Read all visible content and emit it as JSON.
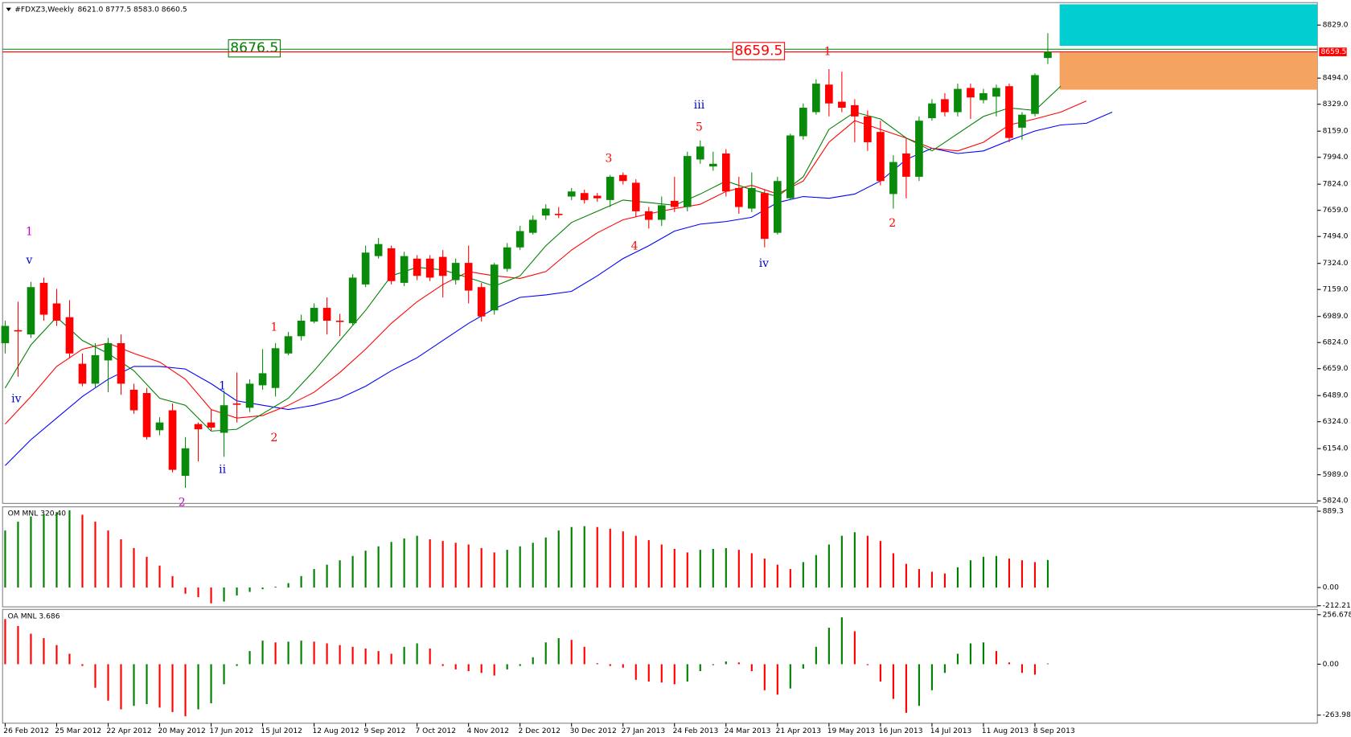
{
  "chart_data": [
    {
      "type": "candlestick",
      "title": "#FDXZ3,Weekly",
      "title_ohlc": "8621.0 8777.5 8583.0 8660.5",
      "categories": [
        "26 Feb 2012",
        null,
        null,
        null,
        "25 Mar 2012",
        null,
        null,
        null,
        "22 Apr 2012",
        null,
        null,
        null,
        "20 May 2012",
        null,
        null,
        null,
        "17 Jun 2012",
        null,
        null,
        null,
        "15 Jul 2012",
        null,
        null,
        null,
        "12 Aug 2012",
        null,
        null,
        null,
        "9 Sep 2012",
        null,
        null,
        null,
        "7 Oct 2012",
        null,
        null,
        null,
        "4 Nov 2012",
        null,
        null,
        null,
        "2 Dec 2012",
        null,
        null,
        null,
        "30 Dec 2012",
        null,
        null,
        null,
        "27 Jan 2013",
        null,
        null,
        null,
        "24 Feb 2013",
        null,
        null,
        null,
        "24 Mar 2013",
        null,
        null,
        null,
        "21 Apr 2013",
        null,
        null,
        null,
        "19 May 2013",
        null,
        null,
        null,
        "16 Jun 2013",
        null,
        null,
        null,
        "14 Jul 2013",
        null,
        null,
        null,
        "11 Aug 2013",
        null,
        null,
        null,
        "8 Sep 2013",
        null
      ],
      "open": [
        6820,
        6902,
        6875,
        7201,
        7071,
        6984,
        6690,
        6564,
        6711,
        6820,
        6526,
        6505,
        6270,
        6396,
        5982,
        6309,
        6319,
        6254,
        6439,
        6412,
        6554,
        6537,
        6755,
        6864,
        6956,
        7043,
        6962,
        6946,
        7191,
        7370,
        7419,
        7201,
        7354,
        7354,
        7365,
        7218,
        7327,
        7174,
        7027,
        7289,
        7425,
        7517,
        7626,
        7637,
        7746,
        7768,
        7751,
        7724,
        7882,
        7833,
        7653,
        7599,
        7719,
        7680,
        7980,
        7936,
        8018,
        7800,
        7670,
        7768,
        7517,
        7735,
        8127,
        8279,
        8453,
        8345,
        8323,
        8252,
        8154,
        7762,
        8018,
        7871,
        8241,
        8361,
        8279,
        8432,
        8355,
        8377,
        8443,
        8181,
        8268,
        8621
      ],
      "high": [
        6962,
        7082,
        7207,
        7234,
        7163,
        7092,
        6755,
        6820,
        6853,
        6875,
        6564,
        6537,
        6352,
        6439,
        6227,
        6319,
        6401,
        6521,
        6635,
        6592,
        6782,
        6820,
        6891,
        7000,
        7071,
        7109,
        7005,
        7256,
        7436,
        7484,
        7436,
        7397,
        7376,
        7376,
        7408,
        7354,
        7436,
        7201,
        7327,
        7452,
        7561,
        7626,
        7697,
        7680,
        7800,
        7789,
        7768,
        7882,
        7898,
        7855,
        7680,
        7746,
        7871,
        8029,
        8100,
        8029,
        8045,
        7871,
        7898,
        7789,
        7871,
        8143,
        8334,
        8486,
        8551,
        8535,
        8361,
        8290,
        8225,
        8007,
        8116,
        8252,
        8361,
        8399,
        8459,
        8459,
        8426,
        8453,
        8459,
        8279,
        8524,
        8777.5
      ],
      "low": [
        6755,
        6608,
        6853,
        6962,
        6929,
        6728,
        6548,
        6537,
        6510,
        6494,
        6374,
        6211,
        6238,
        6004,
        5906,
        6074,
        6265,
        6102,
        6319,
        6385,
        6526,
        6483,
        6744,
        6837,
        6946,
        6875,
        6864,
        6929,
        7174,
        7354,
        7191,
        7180,
        7218,
        7212,
        7109,
        7191,
        7071,
        6956,
        7000,
        7272,
        7408,
        7506,
        7599,
        7610,
        7724,
        7702,
        7713,
        7680,
        7822,
        7615,
        7544,
        7561,
        7648,
        7653,
        7953,
        7909,
        7746,
        7637,
        7648,
        7425,
        7506,
        7724,
        8105,
        8263,
        8252,
        8279,
        8089,
        8034,
        7817,
        7670,
        7735,
        7844,
        8225,
        8252,
        8252,
        8236,
        8334,
        8252,
        8089,
        8105,
        8252,
        8583
      ],
      "close": [
        6929,
        6897,
        7174,
        7000,
        6962,
        6755,
        6564,
        6744,
        6820,
        6564,
        6396,
        6227,
        6319,
        6020,
        6156,
        6276,
        6287,
        6428,
        6434,
        6564,
        6630,
        6788,
        6864,
        6962,
        7043,
        6962,
        6956,
        7234,
        7392,
        7446,
        7212,
        7370,
        7245,
        7234,
        7245,
        7327,
        7152,
        6989,
        7316,
        7425,
        7528,
        7599,
        7670,
        7631,
        7778,
        7724,
        7735,
        7871,
        7844,
        7653,
        7599,
        7691,
        7680,
        8002,
        8062,
        7953,
        7778,
        7680,
        7800,
        7479,
        7844,
        8132,
        8307,
        8459,
        8334,
        8307,
        8252,
        8089,
        7844,
        7964,
        7871,
        8225,
        8334,
        8279,
        8426,
        8372,
        8399,
        8432,
        8116,
        8263,
        8513,
        8660.5
      ],
      "up_color": "#0a8a0a",
      "down_color": "#ff0000",
      "ylim": [
        5808,
        8971
      ],
      "yticks": [
        {
          "value": 8829,
          "label": "8829.0"
        },
        {
          "value": 8494,
          "label": "8494.0"
        },
        {
          "value": 8329,
          "label": "8329.0"
        },
        {
          "value": 8159,
          "label": "8159.0"
        },
        {
          "value": 7994,
          "label": "7994.0"
        },
        {
          "value": 7824,
          "label": "7824.0"
        },
        {
          "value": 7659,
          "label": "7659.0"
        },
        {
          "value": 7494,
          "label": "7494.0"
        },
        {
          "value": 7324,
          "label": "7324.0"
        },
        {
          "value": 7159,
          "label": "7159.0"
        },
        {
          "value": 6989,
          "label": "6989.0"
        },
        {
          "value": 6824,
          "label": "6824.0"
        },
        {
          "value": 6659,
          "label": "6659.0"
        },
        {
          "value": 6489,
          "label": "6489.0"
        },
        {
          "value": 6324,
          "label": "6324.0"
        },
        {
          "value": 6154,
          "label": "6154.0"
        },
        {
          "value": 5989,
          "label": "5989.0"
        },
        {
          "value": 5824,
          "label": "5824.0"
        }
      ],
      "price_label": {
        "value": 8659.5,
        "label": "8659.5",
        "color": "#ff0000"
      },
      "levels": [
        {
          "value": 8676.5,
          "label": "8676.5",
          "color": "#008000"
        },
        {
          "value": 8659.5,
          "label": "8659.5",
          "color": "#ff0000"
        }
      ],
      "zones": [
        {
          "color": "#00ced1",
          "ylim": [
            8698,
            8960
          ]
        },
        {
          "color": "#f4a460",
          "ylim": [
            8421,
            8655
          ]
        }
      ],
      "lines": [
        {
          "color": "#0000ff",
          "x": [
            0,
            2,
            4,
            6,
            8,
            10,
            12,
            14,
            16,
            18,
            20,
            22,
            24,
            26,
            28,
            30,
            32,
            34,
            36,
            38,
            40,
            42,
            44,
            46,
            48,
            50,
            52,
            54,
            56,
            58,
            60,
            62,
            64,
            66,
            68,
            70,
            72,
            74,
            76,
            78,
            80,
            82,
            84,
            86
          ],
          "values": [
            6047,
            6211,
            6347,
            6483,
            6592,
            6673,
            6673,
            6657,
            6564,
            6456,
            6428,
            6401,
            6428,
            6472,
            6548,
            6646,
            6728,
            6837,
            6945,
            7038,
            7109,
            7125,
            7147,
            7245,
            7354,
            7435,
            7528,
            7572,
            7588,
            7615,
            7708,
            7746,
            7735,
            7762,
            7844,
            7980,
            8051,
            8018,
            8034,
            8100,
            8160,
            8198,
            8209,
            8279
          ]
        },
        {
          "color": "#ff0000",
          "x": [
            0,
            2,
            4,
            6,
            8,
            10,
            12,
            14,
            16,
            18,
            20,
            22,
            24,
            26,
            28,
            30,
            32,
            34,
            36,
            38,
            40,
            42,
            44,
            46,
            48,
            50,
            52,
            54,
            56,
            58,
            60,
            62,
            64,
            66,
            68,
            70,
            72,
            74,
            76,
            78,
            80,
            82,
            84
          ],
          "values": [
            6309,
            6483,
            6673,
            6782,
            6820,
            6755,
            6701,
            6592,
            6401,
            6347,
            6363,
            6428,
            6510,
            6635,
            6782,
            6945,
            7082,
            7190,
            7272,
            7245,
            7229,
            7272,
            7408,
            7517,
            7599,
            7637,
            7670,
            7697,
            7778,
            7817,
            7762,
            7844,
            8089,
            8225,
            8170,
            8116,
            8051,
            8034,
            8089,
            8198,
            8236,
            8279,
            8350
          ]
        },
        {
          "color": "#008000",
          "x": [
            0,
            2,
            4,
            6,
            8,
            10,
            12,
            14,
            16,
            18,
            20,
            22,
            24,
            26,
            28,
            30,
            32,
            34,
            36,
            38,
            40,
            42,
            44,
            46,
            48,
            50,
            52,
            54,
            56,
            58,
            60,
            62,
            64,
            66,
            68,
            70,
            72,
            74,
            76,
            78,
            80,
            82
          ],
          "values": [
            6537,
            6809,
            6984,
            6837,
            6755,
            6646,
            6472,
            6428,
            6265,
            6276,
            6374,
            6472,
            6646,
            6837,
            7027,
            7245,
            7299,
            7283,
            7234,
            7180,
            7245,
            7435,
            7582,
            7653,
            7724,
            7708,
            7691,
            7762,
            7844,
            7789,
            7746,
            7871,
            8170,
            8279,
            8236,
            8116,
            8034,
            8143,
            8252,
            8306,
            8290,
            8443
          ]
        }
      ],
      "annotations": [
        {
          "text": "1",
          "color": "#c000c0"
        },
        {
          "text": "v",
          "color": "#0000cc"
        },
        {
          "text": "iv",
          "color": "#0000cc"
        },
        {
          "text": "1",
          "color": "#0000cc"
        },
        {
          "text": "ii",
          "color": "#0000cc"
        },
        {
          "text": "2",
          "color": "#c000c0"
        },
        {
          "text": "1",
          "color": "#ff0000"
        },
        {
          "text": "2",
          "color": "#ff0000"
        },
        {
          "text": "3",
          "color": "#ff0000"
        },
        {
          "text": "4",
          "color": "#ff0000"
        },
        {
          "text": "5",
          "color": "#ff0000"
        },
        {
          "text": "iii",
          "color": "#0000cc"
        },
        {
          "text": "iv",
          "color": "#0000cc"
        },
        {
          "text": "1",
          "color": "#ff0000"
        },
        {
          "text": "2",
          "color": "#ff0000"
        }
      ]
    },
    {
      "type": "bar",
      "title": "OM MNL 320.40",
      "values": [
        664,
        767,
        828,
        858,
        879,
        899,
        848,
        767,
        664,
        562,
        460,
        358,
        256,
        133,
        -72,
        -112,
        -184,
        -164,
        -92,
        -51,
        -20,
        10,
        51,
        133,
        215,
        266,
        317,
        368,
        429,
        480,
        531,
        572,
        603,
        562,
        542,
        521,
        501,
        460,
        409,
        439,
        480,
        521,
        583,
        664,
        705,
        715,
        705,
        685,
        654,
        603,
        552,
        501,
        450,
        409,
        439,
        450,
        460,
        439,
        399,
        337,
        266,
        215,
        296,
        378,
        501,
        603,
        644,
        603,
        542,
        399,
        276,
        215,
        184,
        164,
        235,
        317,
        358,
        368,
        337,
        317,
        296,
        320.4
      ],
      "up_color": "#008000",
      "down_color": "#ff0000",
      "ylim": [
        -225,
        940
      ],
      "yticks": [
        889.3,
        {
          "value": 0,
          "label": "0.00"
        },
        -212.21
      ]
    },
    {
      "type": "bar",
      "title": "OA MNL 3.686",
      "values": [
        234,
        198,
        158,
        135,
        99,
        54,
        -9,
        -122,
        -189,
        -234,
        -216,
        -207,
        -225,
        -248,
        -270,
        -234,
        -203,
        -104,
        -9,
        68,
        122,
        113,
        117,
        122,
        117,
        108,
        99,
        90,
        81,
        68,
        54,
        90,
        108,
        81,
        -9,
        -27,
        -36,
        -45,
        -59,
        -27,
        -9,
        36,
        113,
        135,
        126,
        90,
        5,
        -9,
        -18,
        -81,
        -90,
        -95,
        -104,
        -90,
        -36,
        -5,
        14,
        9,
        -36,
        -135,
        -158,
        -126,
        -23,
        90,
        189,
        243,
        171,
        -5,
        -90,
        -180,
        -252,
        -216,
        -135,
        -45,
        54,
        108,
        113,
        68,
        9,
        -45,
        -54,
        3.686
      ],
      "up_color": "#008000",
      "down_color": "#ff0000",
      "ylim": [
        -306,
        284
      ],
      "yticks": [
        256.678,
        {
          "value": 0,
          "label": "0.00"
        },
        -263.981
      ]
    }
  ]
}
